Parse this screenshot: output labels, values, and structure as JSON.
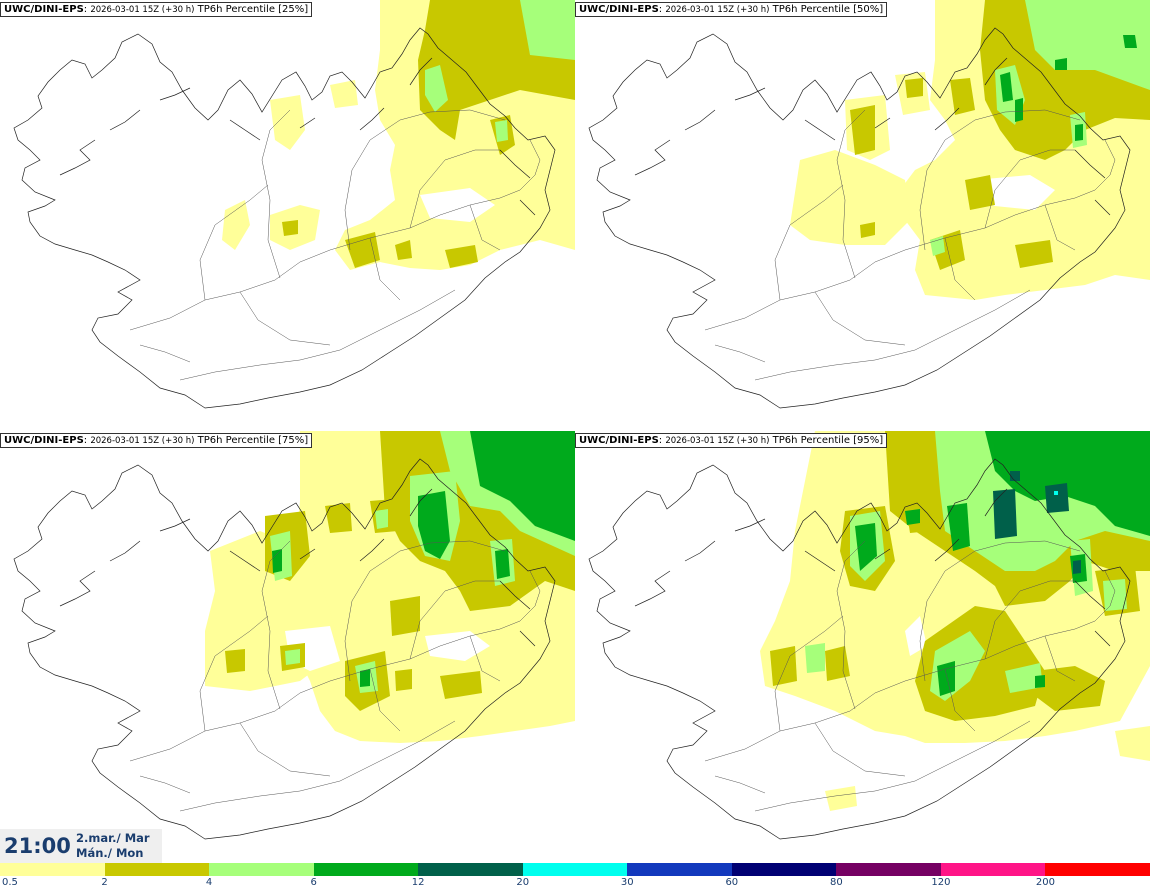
{
  "panels": [
    {
      "model": "UWC/DINI-EPS",
      "run": "2026-03-01 15Z (+30 h)",
      "field": "TP6h Percentile [25%]",
      "percentile": 25
    },
    {
      "model": "UWC/DINI-EPS",
      "run": "2026-03-01 15Z (+30 h)",
      "field": "TP6h Percentile [50%]",
      "percentile": 50
    },
    {
      "model": "UWC/DINI-EPS",
      "run": "2026-03-01 15Z (+30 h)",
      "field": "TP6h Percentile [75%]",
      "percentile": 75
    },
    {
      "model": "UWC/DINI-EPS",
      "run": "2026-03-01 15Z (+30 h)",
      "field": "TP6h Percentile [95%]",
      "percentile": 95
    }
  ],
  "valid_time": {
    "clock": "21:00",
    "date": "2.mar./ Mar",
    "weekday": "Mán./ Mon"
  },
  "colorbar": {
    "ticks": [
      "0.5",
      "2",
      "4",
      "6",
      "12",
      "20",
      "30",
      "60",
      "80",
      "120",
      "200"
    ],
    "colors": [
      "#ffff99",
      "#c8c800",
      "#a6ff7a",
      "#00aa1c",
      "#00604a",
      "#00ffee",
      "#1239bd",
      "#000073",
      "#750063",
      "#ff1487",
      "#ff0000"
    ]
  }
}
